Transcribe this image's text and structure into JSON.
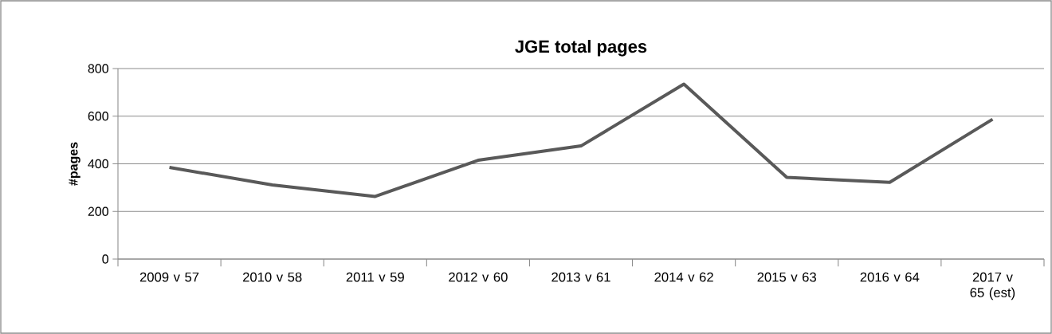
{
  "chart_data": {
    "type": "line",
    "title": "JGE total pages",
    "ylabel": "#pages",
    "categories": [
      "2009 v 57",
      "2010 v 58",
      "2011 v 59",
      "2012 v 60",
      "2013 v 61",
      "2014 v 62",
      "2015 v 63",
      "2016 v 64",
      "2017 v 65 (est)"
    ],
    "series": [
      {
        "color": "#595959",
        "values": [
          385,
          311,
          263,
          415,
          475,
          735,
          343,
          322,
          587
        ]
      }
    ],
    "ylim": [
      0,
      800
    ],
    "yticks": [
      0,
      200,
      400,
      600,
      800
    ],
    "grid": "y",
    "marker": "none",
    "line_style": "solid",
    "legend": false
  }
}
